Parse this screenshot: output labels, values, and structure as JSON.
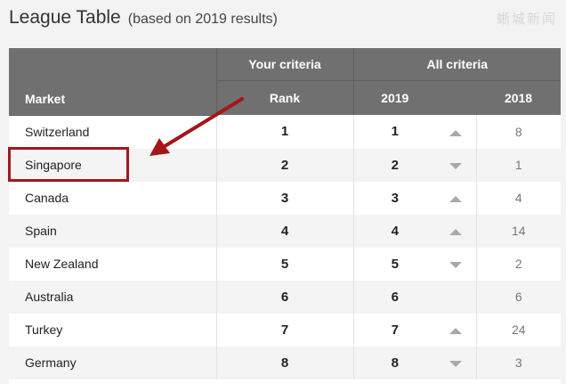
{
  "header": {
    "title": "League Table",
    "subtitle": "(based on 2019 results)",
    "watermark": "蜥城新闻"
  },
  "table": {
    "group_headers": [
      "Your criteria",
      "All criteria"
    ],
    "columns": {
      "market": "Market",
      "rank": "Rank",
      "y2019": "2019",
      "y2018": "2018"
    },
    "rows": [
      {
        "market": "Switzerland",
        "rank": "1",
        "y2019": "1",
        "trend": "up",
        "y2018": "8"
      },
      {
        "market": "Singapore",
        "rank": "2",
        "y2019": "2",
        "trend": "down",
        "y2018": "1"
      },
      {
        "market": "Canada",
        "rank": "3",
        "y2019": "3",
        "trend": "up",
        "y2018": "4"
      },
      {
        "market": "Spain",
        "rank": "4",
        "y2019": "4",
        "trend": "up",
        "y2018": "14"
      },
      {
        "market": "New Zealand",
        "rank": "5",
        "y2019": "5",
        "trend": "down",
        "y2018": "2"
      },
      {
        "market": "Australia",
        "rank": "6",
        "y2019": "6",
        "trend": "none",
        "y2018": "6"
      },
      {
        "market": "Turkey",
        "rank": "7",
        "y2019": "7",
        "trend": "up",
        "y2018": "24"
      },
      {
        "market": "Germany",
        "rank": "8",
        "y2019": "8",
        "trend": "down",
        "y2018": "3"
      }
    ]
  },
  "annotation": {
    "highlighted_row": "Singapore",
    "color": "#a4161a"
  }
}
